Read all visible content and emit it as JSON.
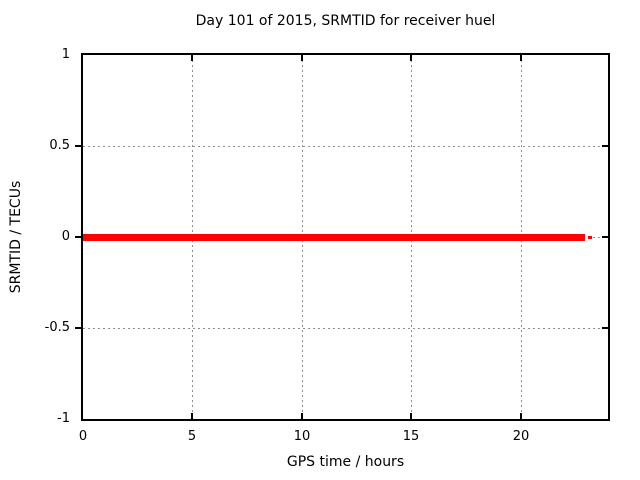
{
  "window": {
    "background": "#ffffff"
  },
  "chart_data": {
    "type": "line",
    "title": "Day 101 of 2015, SRMTID for receiver huel",
    "xlabel": "GPS time / hours",
    "ylabel": "SRMTID / TECUs",
    "xlim": [
      0,
      24
    ],
    "ylim": [
      -1,
      1
    ],
    "xticks": [
      0,
      5,
      10,
      15,
      20
    ],
    "yticks": [
      1,
      0.5,
      0,
      -0.5,
      -1
    ],
    "grid": true,
    "legend": "none",
    "series": [
      {
        "name": "SRMTID",
        "color": "#ff0000",
        "y_value": 0,
        "segments": [
          {
            "x0": 0,
            "x1": 22.97,
            "y": 0
          },
          {
            "x0": 23.1,
            "x1": 23.28,
            "y": 0
          }
        ]
      }
    ]
  },
  "colors": {
    "line": "#ff0000",
    "grid": "#8e8e8e",
    "axis": "#000000",
    "background": "#ffffff",
    "text": "#000000"
  }
}
